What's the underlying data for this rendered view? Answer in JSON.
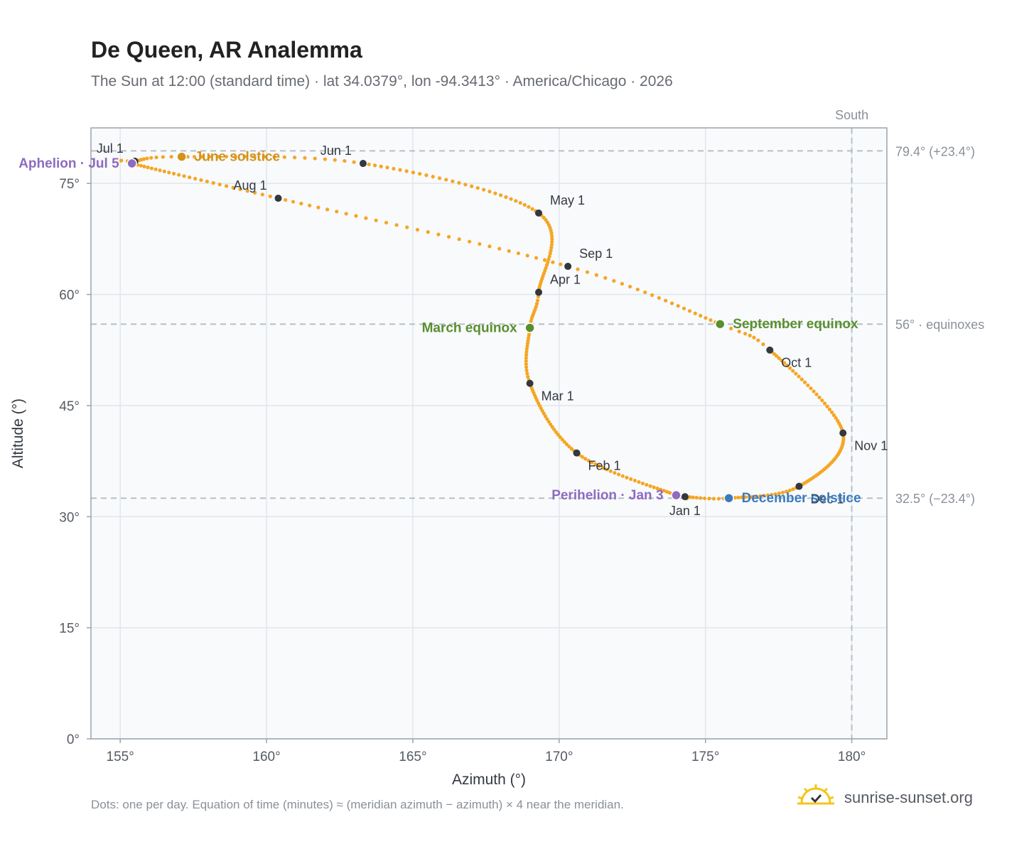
{
  "title": "De Queen, AR Analemma",
  "subtitle": "The Sun at 12:00 (standard time) · lat 34.0379°, lon -94.3413° · America/Chicago · 2026",
  "footnote": "Dots: one per day. Equation of time (minutes) ≈ (meridian azimuth − azimuth) × 4 near the meridian.",
  "brand": "sunrise-sunset.org",
  "colors": {
    "path": "#f5a623",
    "month_dot": "#333840",
    "solstice_june": "#d4921a",
    "equinox": "#5a8f2e",
    "solstice_december": "#3a7bbf",
    "apsis": "#8e6bbf",
    "plot_bg": "#f8fafc",
    "grid": "#e2e6ea",
    "axis": "#9aa3ad",
    "refline": "#b8bfc6"
  },
  "chart_data": {
    "type": "scatter",
    "xlabel": "Azimuth (°)",
    "ylabel": "Altitude (°)",
    "xlim": [
      154,
      181.2
    ],
    "ylim": [
      0,
      82.5
    ],
    "xticks": [
      155,
      160,
      165,
      170,
      175,
      180
    ],
    "xtick_labels": [
      "155°",
      "160°",
      "165°",
      "170°",
      "175°",
      "180°"
    ],
    "yticks": [
      0,
      15,
      30,
      45,
      60,
      75
    ],
    "ytick_labels": [
      "0°",
      "15°",
      "30°",
      "45°",
      "60°",
      "75°"
    ],
    "grid": true,
    "legend": "none",
    "south_line": {
      "x": 180,
      "label": "South"
    },
    "reference_lines": [
      {
        "y": 79.4,
        "label": "79.4° (+23.4°)"
      },
      {
        "y": 56,
        "label": "56° · equinoxes"
      },
      {
        "y": 32.5,
        "label": "32.5° (−23.4°)"
      }
    ],
    "path_key_points": [
      {
        "day": 0,
        "az": 174.3,
        "alt": 32.7
      },
      {
        "day": 2,
        "az": 174.0,
        "alt": 32.9
      },
      {
        "day": 31,
        "az": 170.6,
        "alt": 38.6
      },
      {
        "day": 59,
        "az": 169.0,
        "alt": 48.0
      },
      {
        "day": 78,
        "az": 169.0,
        "alt": 55.5
      },
      {
        "day": 90,
        "az": 169.3,
        "alt": 60.3
      },
      {
        "day": 120,
        "az": 169.3,
        "alt": 71.0
      },
      {
        "day": 151,
        "az": 163.3,
        "alt": 77.7
      },
      {
        "day": 171,
        "az": 157.1,
        "alt": 78.6
      },
      {
        "day": 181,
        "az": 155.5,
        "alt": 78.0
      },
      {
        "day": 185,
        "az": 155.4,
        "alt": 77.7
      },
      {
        "day": 212,
        "az": 160.4,
        "alt": 73.0
      },
      {
        "day": 243,
        "az": 170.3,
        "alt": 63.8
      },
      {
        "day": 265,
        "az": 175.5,
        "alt": 56.0
      },
      {
        "day": 273,
        "az": 177.2,
        "alt": 52.5
      },
      {
        "day": 304,
        "az": 179.7,
        "alt": 41.3
      },
      {
        "day": 334,
        "az": 178.2,
        "alt": 34.1
      },
      {
        "day": 354,
        "az": 175.8,
        "alt": 32.5
      },
      {
        "day": 365,
        "az": 174.3,
        "alt": 32.7
      }
    ],
    "month_markers": [
      {
        "label": "Jan 1",
        "az": 174.3,
        "alt": 32.7,
        "pos": "below"
      },
      {
        "label": "Feb 1",
        "az": 170.6,
        "alt": 38.6,
        "pos": "below-right"
      },
      {
        "label": "Mar 1",
        "az": 169.0,
        "alt": 48.0,
        "pos": "below-right"
      },
      {
        "label": "Apr 1",
        "az": 169.3,
        "alt": 60.3,
        "pos": "above-right"
      },
      {
        "label": "May 1",
        "az": 169.3,
        "alt": 71.0,
        "pos": "above-right"
      },
      {
        "label": "Jun 1",
        "az": 163.3,
        "alt": 77.7,
        "pos": "above-left"
      },
      {
        "label": "Jul 1",
        "az": 155.5,
        "alt": 78.0,
        "pos": "above-left"
      },
      {
        "label": "Aug 1",
        "az": 160.4,
        "alt": 73.0,
        "pos": "above-left"
      },
      {
        "label": "Sep 1",
        "az": 170.3,
        "alt": 63.8,
        "pos": "above-right"
      },
      {
        "label": "Oct 1",
        "az": 177.2,
        "alt": 52.5,
        "pos": "below-right"
      },
      {
        "label": "Nov 1",
        "az": 179.7,
        "alt": 41.3,
        "pos": "below-right"
      },
      {
        "label": "Dec 1",
        "az": 178.2,
        "alt": 34.1,
        "pos": "below-right"
      }
    ],
    "events": [
      {
        "label": "June solstice",
        "az": 157.1,
        "alt": 78.6,
        "color": "#d4921a",
        "pos": "right"
      },
      {
        "label": "March equinox",
        "az": 169.0,
        "alt": 55.5,
        "color": "#5a8f2e",
        "pos": "left"
      },
      {
        "label": "September equinox",
        "az": 175.5,
        "alt": 56.0,
        "color": "#5a8f2e",
        "pos": "right"
      },
      {
        "label": "December solstice",
        "az": 175.8,
        "alt": 32.5,
        "color": "#3a7bbf",
        "pos": "right"
      },
      {
        "label": "Aphelion · Jul 5",
        "az": 155.4,
        "alt": 77.7,
        "color": "#8e6bbf",
        "pos": "left"
      },
      {
        "label": "Perihelion · Jan 3",
        "az": 174.0,
        "alt": 32.9,
        "color": "#8e6bbf",
        "pos": "left"
      }
    ]
  }
}
